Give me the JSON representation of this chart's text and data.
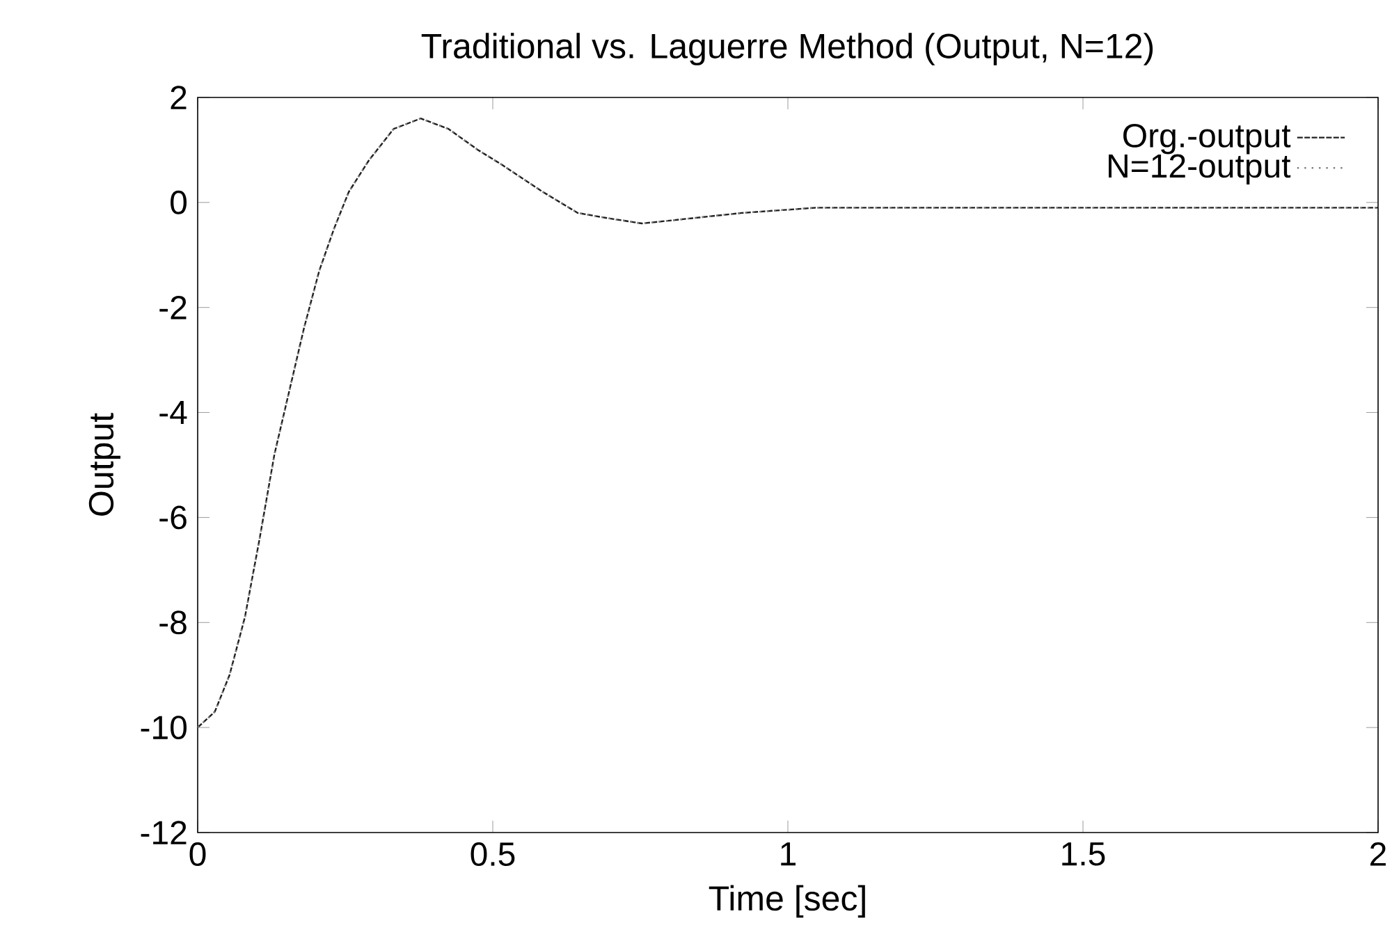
{
  "chart_data": {
    "type": "line",
    "title": "Traditional vs. Laguerre Method (Output, N=12)",
    "xlabel": "Time [sec]",
    "ylabel": "Output",
    "x": [
      0,
      0.029,
      0.054,
      0.08,
      0.105,
      0.13,
      0.155,
      0.18,
      0.206,
      0.231,
      0.256,
      0.29,
      0.332,
      0.378,
      0.425,
      0.475,
      0.518,
      0.585,
      0.644,
      0.695,
      0.753,
      0.838,
      0.922,
      1.048,
      1.2,
      1.4,
      1.6,
      1.8,
      2.0
    ],
    "series": [
      {
        "name": "Org.-output",
        "color": "#202020",
        "line_style": "dashed",
        "values": [
          -10.0,
          -9.7,
          -9.0,
          -7.9,
          -6.4,
          -4.8,
          -3.6,
          -2.4,
          -1.3,
          -0.5,
          0.2,
          0.8,
          1.4,
          1.6,
          1.4,
          1.0,
          0.7,
          0.2,
          -0.2,
          -0.3,
          -0.4,
          -0.3,
          -0.2,
          -0.1,
          -0.1,
          -0.1,
          -0.1,
          -0.1,
          -0.1
        ]
      },
      {
        "name": "N=12-output",
        "color": "#808080",
        "line_style": "dotted",
        "values": [
          -10.0,
          -9.7,
          -9.0,
          -7.9,
          -6.4,
          -4.8,
          -3.6,
          -2.4,
          -1.3,
          -0.5,
          0.2,
          0.8,
          1.4,
          1.6,
          1.4,
          1.0,
          0.7,
          0.2,
          -0.2,
          -0.3,
          -0.4,
          -0.3,
          -0.2,
          -0.1,
          -0.1,
          -0.1,
          -0.1,
          -0.1,
          -0.1
        ]
      }
    ],
    "xlim": [
      0,
      2
    ],
    "ylim": [
      -12,
      2
    ],
    "xticks": [
      0,
      0.5,
      1,
      1.5,
      2
    ],
    "yticks": [
      -12,
      -10,
      -8,
      -6,
      -4,
      -2,
      0,
      2
    ],
    "legend": "top right",
    "marker": "none"
  }
}
